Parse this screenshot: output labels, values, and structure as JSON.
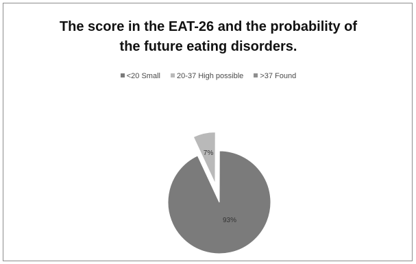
{
  "chart_data": {
    "type": "pie",
    "title_lines": [
      "The score in the EAT-26 and the probability of",
      "the future eating disorders."
    ],
    "legend_position": "top",
    "categories": [
      "<20 Small",
      "20-37 High possible",
      ">37 Found"
    ],
    "values": [
      93,
      7,
      0
    ],
    "data_labels": [
      "93%",
      "7%",
      ""
    ],
    "colors": [
      "#7b7b7b",
      "#b9b9b9",
      "#8f8f8f"
    ],
    "exploded": [
      false,
      true,
      false
    ]
  }
}
